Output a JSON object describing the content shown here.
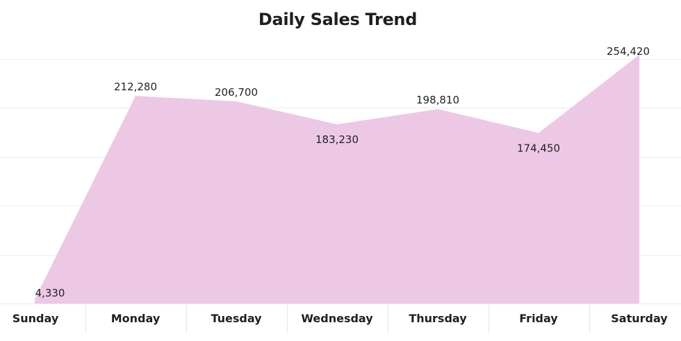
{
  "chart_data": {
    "type": "area",
    "title": "Daily Sales Trend",
    "xlabel": "",
    "ylabel": "",
    "categories": [
      "Sunday",
      "Monday",
      "Tuesday",
      "Wednesday",
      "Thursday",
      "Friday",
      "Saturday"
    ],
    "values": [
      4330,
      212280,
      206700,
      183230,
      198810,
      174450,
      254420
    ],
    "data_labels": [
      "4,330",
      "212,280",
      "206,700",
      "183,230",
      "198,810",
      "174,450",
      "254,420"
    ],
    "ylim": [
      0,
      250000
    ],
    "grid": true,
    "legend": "none",
    "colors": {
      "area": "#edc8e5",
      "grid": "#ebebeb",
      "text": "#1f1f1f"
    }
  }
}
